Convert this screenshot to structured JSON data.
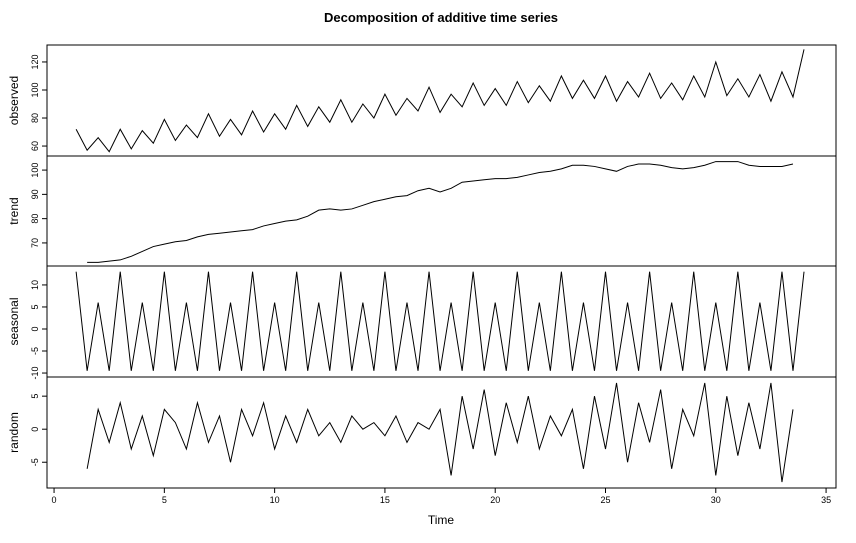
{
  "chart_data": [
    {
      "type": "line",
      "title": "Decomposition of additive time series",
      "ylabel": "observed",
      "color": "#000000",
      "xlim": [
        -0.32,
        35.45
      ],
      "ylim": [
        52.9,
        132.1
      ],
      "yticks": [
        60,
        80,
        100,
        120
      ],
      "x": [
        1,
        1.5,
        2,
        2.5,
        3,
        3.5,
        4,
        4.5,
        5,
        5.5,
        6,
        6.5,
        7,
        7.5,
        8,
        8.5,
        9,
        9.5,
        10,
        10.5,
        11,
        11.5,
        12,
        12.5,
        13,
        13.5,
        14,
        14.5,
        15,
        15.5,
        16,
        16.5,
        17,
        17.5,
        18,
        18.5,
        19,
        19.5,
        20,
        20.5,
        21,
        21.5,
        22,
        22.5,
        23,
        23.5,
        24,
        24.5,
        25,
        25.5,
        26,
        26.5,
        27,
        27.5,
        28,
        28.5,
        29,
        29.5,
        30,
        30.5,
        31,
        31.5,
        32,
        32.5,
        33,
        33.5,
        34
      ],
      "values": [
        72,
        57,
        66,
        56,
        72,
        58,
        71,
        62,
        79,
        64,
        75,
        66,
        83,
        67,
        79,
        68,
        85,
        70,
        83,
        72,
        89,
        74,
        88,
        77,
        93,
        77,
        90,
        80,
        97,
        82,
        94,
        85,
        102,
        84,
        97,
        88,
        105,
        89,
        101,
        89,
        106,
        91,
        103,
        92,
        110,
        94,
        107,
        94,
        110,
        92,
        106,
        95,
        112,
        94,
        105,
        93,
        110,
        95,
        120,
        96,
        108,
        95,
        111,
        92,
        113,
        95,
        129
      ]
    },
    {
      "type": "line",
      "ylabel": "trend",
      "color": "#000000",
      "xlim": [
        -0.32,
        35.45
      ],
      "ylim": [
        60.5,
        105.8
      ],
      "yticks": [
        70,
        80,
        90,
        100
      ],
      "x": [
        1.5,
        2,
        2.5,
        3,
        3.5,
        4,
        4.5,
        5,
        5.5,
        6,
        6.5,
        7,
        7.5,
        8,
        8.5,
        9,
        9.5,
        10,
        10.5,
        11,
        11.5,
        12,
        12.5,
        13,
        13.5,
        14,
        14.5,
        15,
        15.5,
        16,
        16.5,
        17,
        17.5,
        18,
        18.5,
        19,
        19.5,
        20,
        20.5,
        21,
        21.5,
        22,
        22.5,
        23,
        23.5,
        24,
        24.5,
        25,
        25.5,
        26,
        26.5,
        27,
        27.5,
        28,
        28.5,
        29,
        29.5,
        30,
        30.5,
        31,
        31.5,
        32,
        32.5,
        33,
        33.5
      ],
      "values": [
        62,
        62,
        62.5,
        63,
        64.5,
        66.5,
        68.5,
        69.5,
        70.5,
        71,
        72.5,
        73.5,
        74,
        74.5,
        75,
        75.5,
        77,
        78,
        79,
        79.5,
        81,
        83.5,
        84,
        83.5,
        84,
        85.5,
        87,
        88,
        89,
        89.5,
        91.5,
        92.5,
        91,
        92.5,
        95,
        95.5,
        96,
        96.5,
        96.5,
        97,
        98,
        99,
        99.5,
        100.5,
        102,
        102,
        101.5,
        100.5,
        99.5,
        101.5,
        102.5,
        102.5,
        102,
        101,
        100.5,
        101,
        102,
        103.5,
        103.5,
        103.5,
        102,
        101.5,
        101.5,
        101.5,
        102.5
      ]
    },
    {
      "type": "line",
      "ylabel": "seasonal",
      "color": "#000000",
      "xlim": [
        -0.32,
        35.45
      ],
      "ylim": [
        -10.9,
        14.3
      ],
      "yticks": [
        -10,
        -5,
        0,
        5,
        10
      ],
      "x": [
        1,
        1.5,
        2,
        2.5,
        3,
        3.5,
        4,
        4.5,
        5,
        5.5,
        6,
        6.5,
        7,
        7.5,
        8,
        8.5,
        9,
        9.5,
        10,
        10.5,
        11,
        11.5,
        12,
        12.5,
        13,
        13.5,
        14,
        14.5,
        15,
        15.5,
        16,
        16.5,
        17,
        17.5,
        18,
        18.5,
        19,
        19.5,
        20,
        20.5,
        21,
        21.5,
        22,
        22.5,
        23,
        23.5,
        24,
        24.5,
        25,
        25.5,
        26,
        26.5,
        27,
        27.5,
        28,
        28.5,
        29,
        29.5,
        30,
        30.5,
        31,
        31.5,
        32,
        32.5,
        33,
        33.5,
        34
      ],
      "values": [
        13,
        -9.5,
        6,
        -9.5,
        13,
        -9.5,
        6,
        -9.5,
        13,
        -9.5,
        6,
        -9.5,
        13,
        -9.5,
        6,
        -9.5,
        13,
        -9.5,
        6,
        -9.5,
        13,
        -9.5,
        6,
        -9.5,
        13,
        -9.5,
        6,
        -9.5,
        13,
        -9.5,
        6,
        -9.5,
        13,
        -9.5,
        6,
        -9.5,
        13,
        -9.5,
        6,
        -9.5,
        13,
        -9.5,
        6,
        -9.5,
        13,
        -9.5,
        6,
        -9.5,
        13,
        -9.5,
        6,
        -9.5,
        13,
        -9.5,
        6,
        -9.5,
        13,
        -9.5,
        6,
        -9.5,
        13,
        -9.5,
        6,
        -9.5,
        13,
        -9.5,
        13
      ]
    },
    {
      "type": "line",
      "ylabel": "random",
      "xlabel": "Time",
      "color": "#000000",
      "xlim": [
        -0.32,
        35.45
      ],
      "ylim": [
        -8.9,
        7.9
      ],
      "yticks": [
        -5,
        0,
        5
      ],
      "xticks": [
        0,
        5,
        10,
        15,
        20,
        25,
        30,
        35
      ],
      "x": [
        1.5,
        2,
        2.5,
        3,
        3.5,
        4,
        4.5,
        5,
        5.5,
        6,
        6.5,
        7,
        7.5,
        8,
        8.5,
        9,
        9.5,
        10,
        10.5,
        11,
        11.5,
        12,
        12.5,
        13,
        13.5,
        14,
        14.5,
        15,
        15.5,
        16,
        16.5,
        17,
        17.5,
        18,
        18.5,
        19,
        19.5,
        20,
        20.5,
        21,
        21.5,
        22,
        22.5,
        23,
        23.5,
        24,
        24.5,
        25,
        25.5,
        26,
        26.5,
        27,
        27.5,
        28,
        28.5,
        29,
        29.5,
        30,
        30.5,
        31,
        31.5,
        32,
        32.5,
        33,
        33.5
      ],
      "values": [
        -6,
        3,
        -2,
        4,
        -3,
        2,
        -4,
        3,
        1,
        -3,
        4,
        -2,
        2,
        -5,
        3,
        -1,
        4,
        -3,
        2,
        -2,
        3,
        -1,
        1,
        -2,
        2,
        0,
        1,
        -1,
        2,
        -2,
        1,
        0,
        3,
        -7,
        5,
        -3,
        6,
        -4,
        4,
        -2,
        5,
        -3,
        2,
        -1,
        3,
        -6,
        5,
        -3,
        7,
        -5,
        4,
        -2,
        6,
        -6,
        3,
        -1,
        7,
        -7,
        5,
        -4,
        4,
        -3,
        7,
        -8,
        3
      ]
    }
  ]
}
